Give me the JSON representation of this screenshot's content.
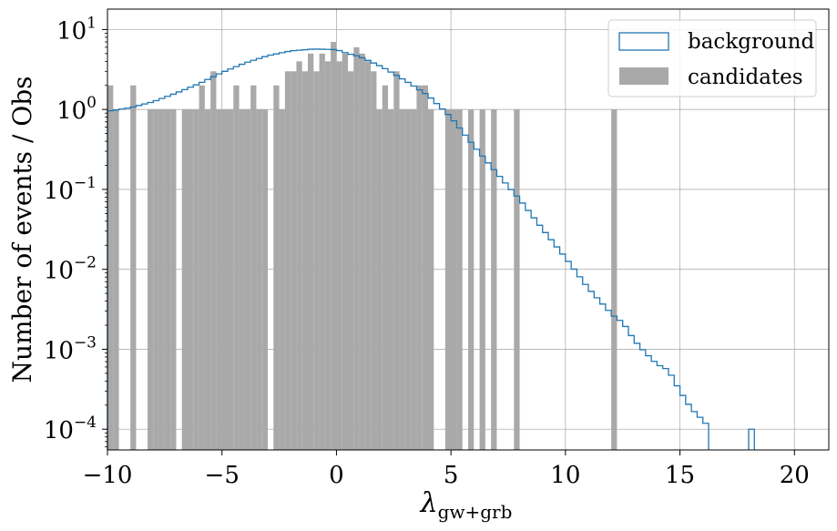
{
  "chart_data": {
    "type": "histogram",
    "xlabel": "λ",
    "xlabel_sub": "gw+grb",
    "ylabel": "Number of events / Obs",
    "xlim": [
      -10,
      21.5
    ],
    "ylim": [
      5.5e-05,
      18
    ],
    "yscale": "log",
    "grid": true,
    "legend_position": "top-right",
    "x_ticks": [
      -10,
      -5,
      0,
      5,
      10,
      15,
      20
    ],
    "x_tick_labels": [
      "−10",
      "−5",
      "0",
      "5",
      "10",
      "15",
      "20"
    ],
    "y_ticks": [
      0.0001,
      0.001,
      0.01,
      0.1,
      1,
      10
    ],
    "y_tick_labels": [
      {
        "base": "10",
        "exp": "−4"
      },
      {
        "base": "10",
        "exp": "−3"
      },
      {
        "base": "10",
        "exp": "−2"
      },
      {
        "base": "10",
        "exp": "−1"
      },
      {
        "base": "10",
        "exp": "0"
      },
      {
        "base": "10",
        "exp": "1"
      }
    ],
    "colors": {
      "background": "#1f77b4",
      "candidates": "#a9a9a9",
      "grid": "#b0b0b0"
    },
    "series": [
      {
        "name": "background",
        "style": "step",
        "bin_width": 0.25,
        "points": [
          [
            -10,
            0.95
          ],
          [
            -9,
            1.05
          ],
          [
            -8,
            1.25
          ],
          [
            -7,
            1.6
          ],
          [
            -6,
            2.1
          ],
          [
            -5,
            2.9
          ],
          [
            -4,
            3.8
          ],
          [
            -3,
            4.7
          ],
          [
            -2,
            5.4
          ],
          [
            -1,
            5.7
          ],
          [
            0,
            5.6
          ],
          [
            0.5,
            5.0
          ],
          [
            1,
            4.6
          ],
          [
            2,
            3.4
          ],
          [
            3,
            2.3
          ],
          [
            4,
            1.5
          ],
          [
            5,
            0.8
          ],
          [
            6,
            0.35
          ],
          [
            7,
            0.16
          ],
          [
            8,
            0.075
          ],
          [
            9,
            0.032
          ],
          [
            10,
            0.014
          ],
          [
            11,
            0.0058
          ],
          [
            12,
            0.0028
          ],
          [
            12.25,
            0.0024
          ],
          [
            12.5,
            0.0022
          ],
          [
            13,
            0.0013
          ],
          [
            13.5,
            0.0009
          ],
          [
            14,
            0.00065
          ],
          [
            14.5,
            0.00055
          ],
          [
            15,
            0.0003
          ],
          [
            15.5,
            0.00018
          ],
          [
            16,
            0.00013
          ],
          [
            16.5,
            9e-05
          ],
          [
            17,
            6e-05
          ],
          [
            18,
            0.0001
          ]
        ]
      },
      {
        "name": "candidates",
        "style": "bar",
        "bin_width": 0.25,
        "bins": [
          [
            -10,
            2
          ],
          [
            -9.75,
            1
          ],
          [
            -9,
            2
          ],
          [
            -8.25,
            1
          ],
          [
            -8,
            1
          ],
          [
            -7.75,
            1
          ],
          [
            -7.5,
            1
          ],
          [
            -7.25,
            1
          ],
          [
            -6.75,
            1
          ],
          [
            -6.5,
            1
          ],
          [
            -6.25,
            1
          ],
          [
            -6,
            2
          ],
          [
            -5.75,
            1
          ],
          [
            -5.5,
            3
          ],
          [
            -5.25,
            1
          ],
          [
            -5,
            1
          ],
          [
            -4.75,
            1
          ],
          [
            -4.5,
            2
          ],
          [
            -4.25,
            1
          ],
          [
            -4,
            1
          ],
          [
            -3.75,
            2
          ],
          [
            -3.5,
            1
          ],
          [
            -3.25,
            1
          ],
          [
            -2.75,
            2
          ],
          [
            -2.5,
            1
          ],
          [
            -2.25,
            3
          ],
          [
            -2,
            3
          ],
          [
            -1.75,
            4
          ],
          [
            -1.5,
            3
          ],
          [
            -1.25,
            5
          ],
          [
            -1,
            3
          ],
          [
            -0.75,
            5
          ],
          [
            -0.5,
            4
          ],
          [
            -0.25,
            7
          ],
          [
            0,
            4
          ],
          [
            0.25,
            5
          ],
          [
            0.5,
            3
          ],
          [
            0.75,
            6
          ],
          [
            1,
            5
          ],
          [
            1.25,
            4
          ],
          [
            1.5,
            3
          ],
          [
            1.75,
            1
          ],
          [
            2,
            2
          ],
          [
            2.25,
            1
          ],
          [
            2.5,
            3
          ],
          [
            2.75,
            1
          ],
          [
            3,
            1
          ],
          [
            3.25,
            1
          ],
          [
            3.5,
            2
          ],
          [
            3.75,
            2
          ],
          [
            4,
            1
          ],
          [
            4.75,
            1
          ],
          [
            5,
            1
          ],
          [
            5.25,
            1
          ],
          [
            5.75,
            1
          ],
          [
            6.25,
            1
          ],
          [
            6.75,
            1
          ],
          [
            7.75,
            1
          ],
          [
            12,
            1
          ]
        ]
      }
    ]
  }
}
